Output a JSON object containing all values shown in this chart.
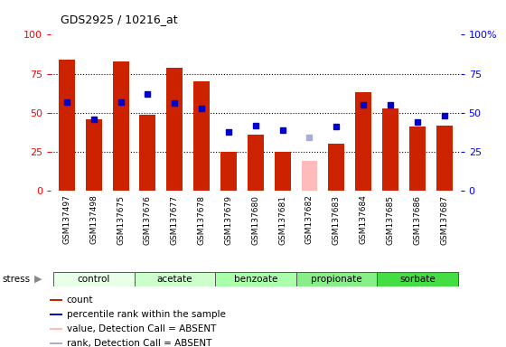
{
  "title": "GDS2925 / 10216_at",
  "samples": [
    "GSM137497",
    "GSM137498",
    "GSM137675",
    "GSM137676",
    "GSM137677",
    "GSM137678",
    "GSM137679",
    "GSM137680",
    "GSM137681",
    "GSM137682",
    "GSM137683",
    "GSM137684",
    "GSM137685",
    "GSM137686",
    "GSM137687"
  ],
  "bar_heights": [
    84,
    46,
    83,
    49,
    79,
    70,
    25,
    36,
    25,
    19,
    30,
    63,
    53,
    41,
    42
  ],
  "bar_absent": [
    false,
    false,
    false,
    false,
    false,
    false,
    false,
    false,
    false,
    true,
    false,
    false,
    false,
    false,
    false
  ],
  "percentile_ranks": [
    57,
    46,
    57,
    62,
    56,
    53,
    38,
    42,
    39,
    34,
    41,
    55,
    55,
    44,
    48
  ],
  "rank_absent": [
    false,
    false,
    false,
    false,
    false,
    false,
    false,
    false,
    false,
    true,
    false,
    false,
    false,
    false,
    false
  ],
  "groups": [
    {
      "name": "control",
      "color": "#e8ffe8",
      "indices": [
        0,
        1,
        2
      ]
    },
    {
      "name": "acetate",
      "color": "#ccffcc",
      "indices": [
        3,
        4,
        5
      ]
    },
    {
      "name": "benzoate",
      "color": "#aaffaa",
      "indices": [
        6,
        7,
        8
      ]
    },
    {
      "name": "propionate",
      "color": "#88ee88",
      "indices": [
        9,
        10,
        11
      ]
    },
    {
      "name": "sorbate",
      "color": "#44dd44",
      "indices": [
        12,
        13,
        14
      ]
    }
  ],
  "bar_color": "#cc2200",
  "bar_absent_color": "#ffbbbb",
  "rank_color": "#0000cc",
  "rank_absent_color": "#aaaadd",
  "ylim": [
    0,
    100
  ],
  "plot_bg": "#ffffff",
  "tick_bg": "#dddddd"
}
